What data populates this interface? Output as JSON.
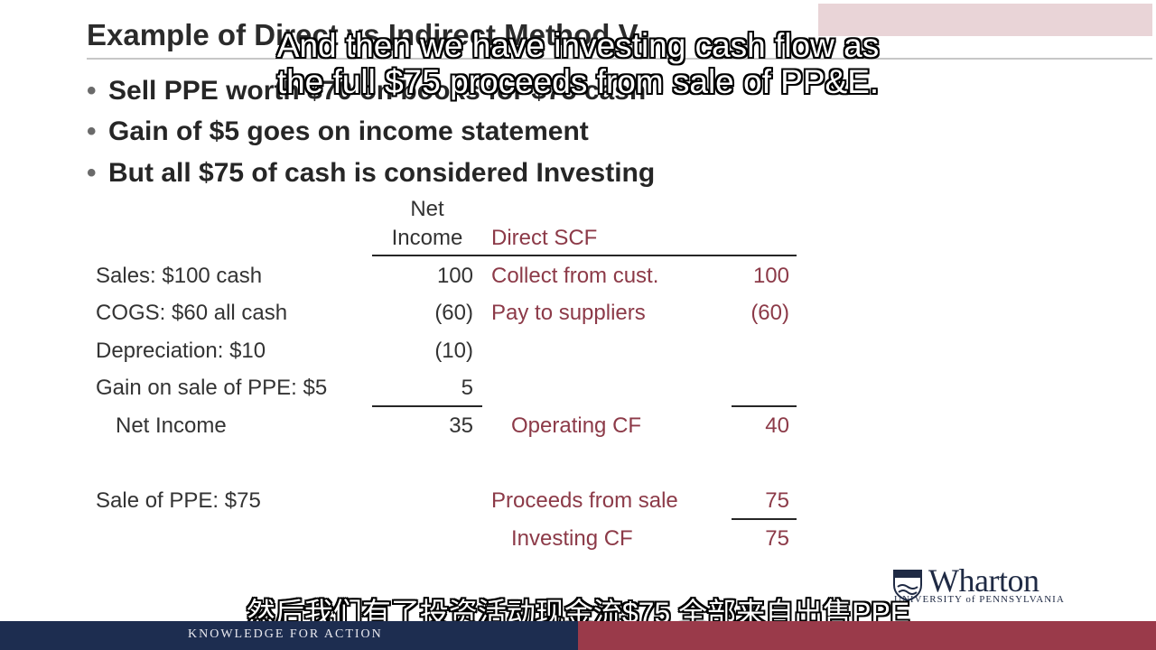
{
  "slide": {
    "title": "Example of Direct vs Indirect Method V",
    "bullets": [
      "Sell PPE worth $70 on books for $75 cash",
      "Gain of $5 goes on income statement",
      "But all $75 of cash is considered Investing"
    ]
  },
  "table": {
    "header_net_line1": "Net",
    "header_net_line2": "Income",
    "header_direct": "Direct SCF",
    "rows": [
      {
        "label": "Sales: $100 cash",
        "net": "100",
        "direct_label": "Collect from cust.",
        "direct_value": "100"
      },
      {
        "label": "COGS: $60 all cash",
        "net": "(60)",
        "direct_label": "Pay to suppliers",
        "direct_value": "(60)"
      },
      {
        "label": "Depreciation: $10",
        "net": "(10)",
        "direct_label": "",
        "direct_value": ""
      },
      {
        "label": "Gain on sale of PPE: $5",
        "net": "5",
        "direct_label": "",
        "direct_value": ""
      }
    ],
    "net_income_label": "Net Income",
    "net_income_value": "35",
    "operating_cf_label": "Operating CF",
    "operating_cf_value": "40",
    "sale_label": "Sale of PPE: $75",
    "proceeds_label": "Proceeds from sale",
    "proceeds_value": "75",
    "investing_cf_label": "Investing CF",
    "investing_cf_value": "75"
  },
  "captions": {
    "en_line1": "And then we have investing cash flow as",
    "en_line2": "the full $75 proceeds from sale of PP&E.",
    "zh": "然后我们有了投资活动现金流$75 全部来自出售PPE"
  },
  "logo": {
    "name": "Wharton",
    "subtitle": "UNIVERSITY of PENNSYLVANIA"
  },
  "footer": {
    "tagline": "KNOWLEDGE FOR ACTION"
  },
  "colors": {
    "accent_red": "#8c3a48",
    "footer_navy": "#1d2d50",
    "footer_maroon": "#9a3a4a"
  }
}
